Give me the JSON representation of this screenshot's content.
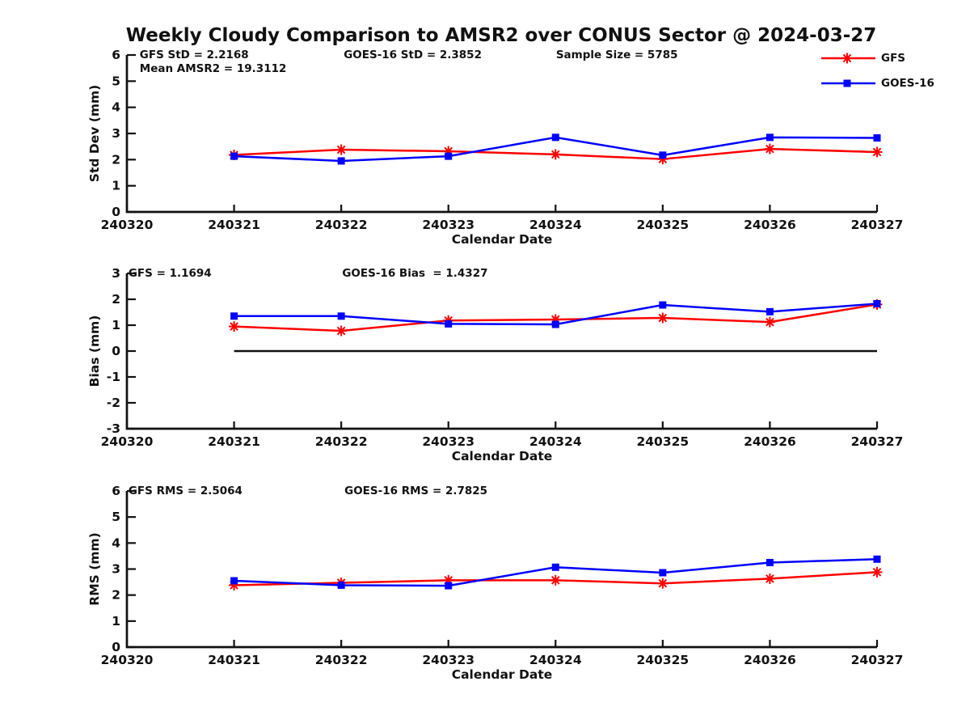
{
  "title": "Weekly Cloudy Comparison to AMSR2 over CONUS Sector @ 2024-03-27",
  "colors": {
    "gfs": "#ff0000",
    "goes16": "#0000ff",
    "axis": "#111111",
    "background": "#ffffff"
  },
  "legend": {
    "position": "top-right",
    "items": [
      {
        "label": "GFS",
        "color": "#ff0000",
        "marker": "asterisk"
      },
      {
        "label": "GOES-16",
        "color": "#0000ff",
        "marker": "square"
      }
    ]
  },
  "chart_data": [
    {
      "type": "line",
      "panel": "std-dev",
      "ylabel": "Std Dev (mm)",
      "xlabel": "Calendar Date",
      "ylim": [
        0,
        6
      ],
      "yticks": [
        0,
        1,
        2,
        3,
        4,
        5,
        6
      ],
      "xtick_labels": [
        "240320",
        "240321",
        "240322",
        "240323",
        "240324",
        "240325",
        "240326",
        "240327"
      ],
      "x_dates": [
        "240321",
        "240322",
        "240323",
        "240324",
        "240325",
        "240326",
        "240327"
      ],
      "grid": false,
      "zero_line": false,
      "series": [
        {
          "name": "GFS",
          "color": "#ff0000",
          "marker": "asterisk",
          "values": [
            2.18,
            2.38,
            2.32,
            2.2,
            2.02,
            2.41,
            2.29
          ]
        },
        {
          "name": "GOES-16",
          "color": "#0000ff",
          "marker": "square",
          "values": [
            2.13,
            1.95,
            2.13,
            2.85,
            2.17,
            2.85,
            2.83
          ]
        }
      ],
      "annotations": [
        {
          "text": "GFS StD = 2.2168",
          "ax": 0.017,
          "row": 0
        },
        {
          "text": "GOES-16 StD = 2.3852",
          "ax": 0.289,
          "row": 0
        },
        {
          "text": "Sample Size = 5785",
          "ax": 0.572,
          "row": 0
        },
        {
          "text": "Mean AMSR2 = 19.3112",
          "ax": 0.017,
          "row": 1
        }
      ]
    },
    {
      "type": "line",
      "panel": "bias",
      "ylabel": "Bias (mm)",
      "xlabel": "Calendar Date",
      "ylim": [
        -3,
        3
      ],
      "yticks": [
        -3,
        -2,
        -1,
        0,
        1,
        2,
        3
      ],
      "xtick_labels": [
        "240320",
        "240321",
        "240322",
        "240323",
        "240324",
        "240325",
        "240326",
        "240327"
      ],
      "x_dates": [
        "240321",
        "240322",
        "240323",
        "240324",
        "240325",
        "240326",
        "240327"
      ],
      "grid": false,
      "zero_line": true,
      "series": [
        {
          "name": "GFS",
          "color": "#ff0000",
          "marker": "asterisk",
          "values": [
            0.95,
            0.78,
            1.18,
            1.22,
            1.28,
            1.12,
            1.8
          ]
        },
        {
          "name": "GOES-16",
          "color": "#0000ff",
          "marker": "square",
          "values": [
            1.35,
            1.35,
            1.05,
            1.03,
            1.78,
            1.52,
            1.83
          ]
        }
      ],
      "annotations": [
        {
          "text": "GFS = 1.1694",
          "ax": 0.002,
          "row": 0
        },
        {
          "text": "GOES-16 Bias  = 1.4327",
          "ax": 0.287,
          "row": 0
        }
      ]
    },
    {
      "type": "line",
      "panel": "rms",
      "ylabel": "RMS (mm)",
      "xlabel": "Calendar Date",
      "ylim": [
        0,
        6
      ],
      "yticks": [
        0,
        1,
        2,
        3,
        4,
        5,
        6
      ],
      "xtick_labels": [
        "240320",
        "240321",
        "240322",
        "240323",
        "240324",
        "240325",
        "240326",
        "240327"
      ],
      "x_dates": [
        "240321",
        "240322",
        "240323",
        "240324",
        "240325",
        "240326",
        "240327"
      ],
      "grid": false,
      "zero_line": false,
      "series": [
        {
          "name": "GFS",
          "color": "#ff0000",
          "marker": "asterisk",
          "values": [
            2.38,
            2.47,
            2.57,
            2.57,
            2.45,
            2.63,
            2.88
          ]
        },
        {
          "name": "GOES-16",
          "color": "#0000ff",
          "marker": "square",
          "values": [
            2.55,
            2.38,
            2.36,
            3.07,
            2.86,
            3.25,
            3.38
          ]
        }
      ],
      "annotations": [
        {
          "text": "GFS RMS = 2.5064",
          "ax": 0.002,
          "row": 0
        },
        {
          "text": "GOES-16 RMS = 2.7825",
          "ax": 0.29,
          "row": 0
        }
      ]
    }
  ]
}
